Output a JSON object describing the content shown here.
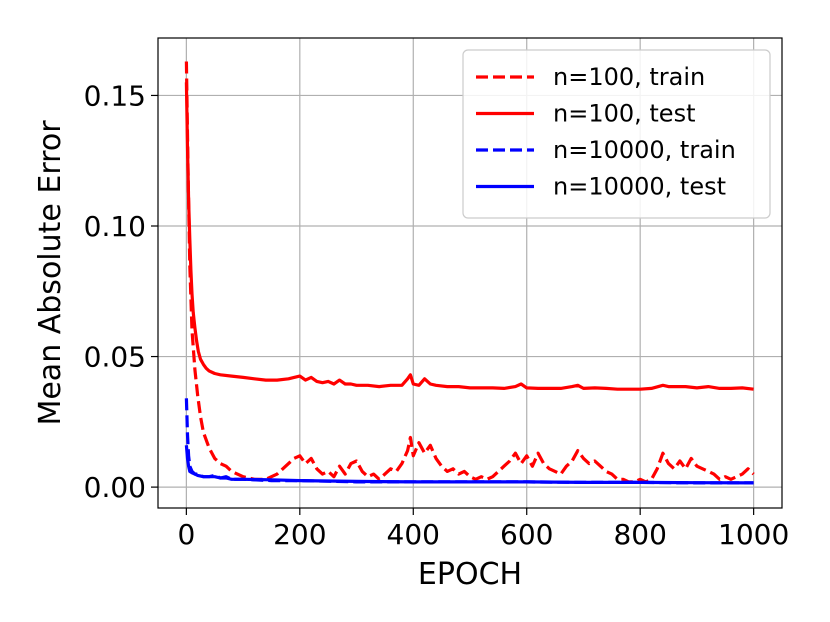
{
  "chart_data": {
    "type": "line",
    "title": "",
    "xlabel": "EPOCH",
    "ylabel": "Mean Absolute Error",
    "xlim": [
      -50,
      1050
    ],
    "ylim": [
      -0.008,
      0.172
    ],
    "xticks": [
      0,
      200,
      400,
      600,
      800,
      1000
    ],
    "xtick_labels": [
      "0",
      "200",
      "400",
      "600",
      "800",
      "1000"
    ],
    "yticks": [
      0.0,
      0.05,
      0.1,
      0.15
    ],
    "ytick_labels": [
      "0.00",
      "0.05",
      "0.10",
      "0.15"
    ],
    "grid": true,
    "legend_position": "top-right",
    "series": [
      {
        "name": "n=100, train",
        "color": "#ff0000",
        "style": "dashed",
        "x": [
          0,
          3,
          6,
          10,
          15,
          20,
          25,
          30,
          40,
          50,
          60,
          70,
          80,
          100,
          120,
          140,
          160,
          170,
          180,
          190,
          200,
          210,
          220,
          230,
          240,
          250,
          260,
          270,
          280,
          290,
          300,
          310,
          320,
          330,
          340,
          350,
          360,
          370,
          380,
          390,
          395,
          400,
          410,
          420,
          430,
          440,
          450,
          460,
          470,
          480,
          490,
          500,
          510,
          520,
          530,
          540,
          550,
          560,
          570,
          580,
          590,
          600,
          610,
          620,
          630,
          640,
          650,
          660,
          670,
          680,
          690,
          700,
          710,
          720,
          730,
          740,
          750,
          760,
          770,
          780,
          790,
          800,
          810,
          820,
          830,
          840,
          850,
          860,
          870,
          880,
          890,
          900,
          910,
          920,
          930,
          940,
          950,
          960,
          970,
          980,
          990,
          1000
        ],
        "y": [
          0.163,
          0.12,
          0.085,
          0.06,
          0.045,
          0.035,
          0.027,
          0.021,
          0.015,
          0.011,
          0.009,
          0.008,
          0.006,
          0.004,
          0.003,
          0.003,
          0.005,
          0.007,
          0.009,
          0.011,
          0.012,
          0.009,
          0.011,
          0.007,
          0.005,
          0.006,
          0.004,
          0.008,
          0.005,
          0.009,
          0.01,
          0.006,
          0.004,
          0.005,
          0.003,
          0.005,
          0.007,
          0.006,
          0.009,
          0.014,
          0.019,
          0.012,
          0.017,
          0.013,
          0.016,
          0.011,
          0.008,
          0.006,
          0.007,
          0.005,
          0.006,
          0.004,
          0.003,
          0.004,
          0.003,
          0.004,
          0.006,
          0.008,
          0.01,
          0.013,
          0.009,
          0.012,
          0.008,
          0.013,
          0.009,
          0.007,
          0.006,
          0.005,
          0.008,
          0.01,
          0.014,
          0.011,
          0.009,
          0.01,
          0.008,
          0.006,
          0.005,
          0.003,
          0.003,
          0.002,
          0.002,
          0.003,
          0.002,
          0.003,
          0.007,
          0.013,
          0.009,
          0.007,
          0.01,
          0.007,
          0.011,
          0.008,
          0.007,
          0.006,
          0.005,
          0.003,
          0.004,
          0.003,
          0.004,
          0.005,
          0.007,
          0.005
        ]
      },
      {
        "name": "n=100, test",
        "color": "#ff0000",
        "style": "solid",
        "x": [
          0,
          2,
          4,
          6,
          8,
          10,
          12,
          15,
          18,
          21,
          25,
          30,
          35,
          40,
          50,
          60,
          80,
          100,
          120,
          140,
          160,
          180,
          190,
          200,
          210,
          220,
          230,
          240,
          250,
          260,
          270,
          280,
          290,
          300,
          320,
          340,
          360,
          380,
          390,
          395,
          400,
          410,
          420,
          430,
          440,
          460,
          480,
          500,
          520,
          540,
          560,
          580,
          590,
          600,
          620,
          640,
          660,
          680,
          690,
          700,
          720,
          740,
          760,
          780,
          800,
          820,
          840,
          850,
          860,
          880,
          900,
          920,
          940,
          960,
          980,
          1000
        ],
        "y": [
          0.155,
          0.13,
          0.11,
          0.095,
          0.083,
          0.074,
          0.067,
          0.061,
          0.056,
          0.052,
          0.049,
          0.047,
          0.0455,
          0.0445,
          0.0435,
          0.043,
          0.0425,
          0.042,
          0.0415,
          0.041,
          0.041,
          0.0415,
          0.042,
          0.0425,
          0.041,
          0.042,
          0.0405,
          0.04,
          0.0405,
          0.0395,
          0.041,
          0.0395,
          0.0395,
          0.039,
          0.039,
          0.0385,
          0.039,
          0.039,
          0.0415,
          0.043,
          0.0395,
          0.039,
          0.0415,
          0.0395,
          0.039,
          0.0385,
          0.0385,
          0.038,
          0.038,
          0.038,
          0.0378,
          0.0385,
          0.0395,
          0.038,
          0.0378,
          0.0378,
          0.0378,
          0.0385,
          0.039,
          0.0378,
          0.038,
          0.0378,
          0.0375,
          0.0375,
          0.0375,
          0.0378,
          0.039,
          0.0385,
          0.0385,
          0.0385,
          0.038,
          0.0385,
          0.0378,
          0.0378,
          0.038,
          0.0375
        ]
      },
      {
        "name": "n=10000, train",
        "color": "#0000ff",
        "style": "dashed",
        "x": [
          0,
          2,
          4,
          6,
          10,
          15,
          20,
          30,
          40,
          50,
          60,
          70,
          80,
          100,
          150,
          200,
          300,
          400,
          500,
          600,
          700,
          800,
          900,
          1000
        ],
        "y": [
          0.034,
          0.02,
          0.012,
          0.008,
          0.006,
          0.005,
          0.005,
          0.004,
          0.004,
          0.0045,
          0.0035,
          0.004,
          0.003,
          0.003,
          0.0025,
          0.0025,
          0.002,
          0.002,
          0.002,
          0.002,
          0.0018,
          0.0018,
          0.0016,
          0.0016
        ]
      },
      {
        "name": "n=10000, test",
        "color": "#0000ff",
        "style": "solid",
        "x": [
          0,
          2,
          4,
          6,
          10,
          15,
          20,
          30,
          40,
          50,
          60,
          70,
          80,
          100,
          150,
          200,
          300,
          400,
          500,
          600,
          700,
          800,
          900,
          1000
        ],
        "y": [
          0.016,
          0.011,
          0.008,
          0.006,
          0.0055,
          0.005,
          0.0045,
          0.004,
          0.004,
          0.004,
          0.0035,
          0.0035,
          0.003,
          0.003,
          0.0028,
          0.0025,
          0.0022,
          0.002,
          0.002,
          0.002,
          0.0018,
          0.0018,
          0.0017,
          0.0016
        ]
      }
    ]
  }
}
